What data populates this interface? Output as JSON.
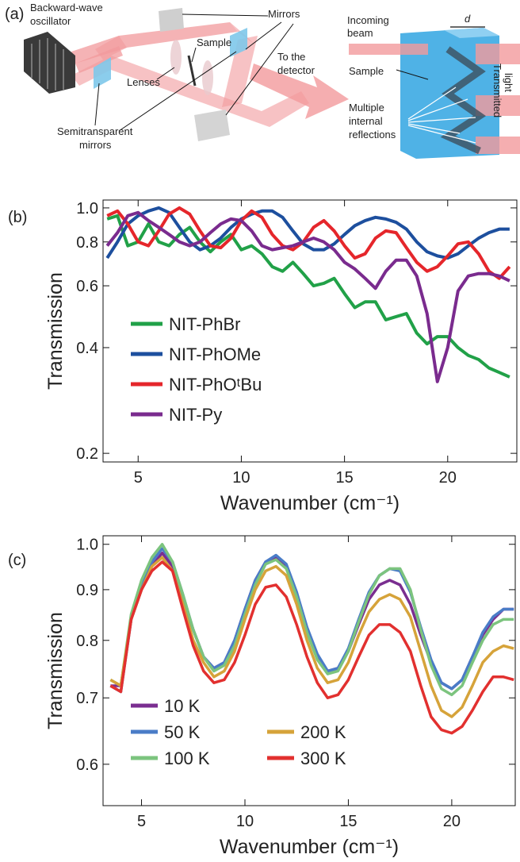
{
  "diagram": {
    "label": "(a)",
    "texts": [
      [
        "Backward-wave",
        "oscillator"
      ],
      [
        "Mirrors"
      ],
      [
        "Sample"
      ],
      [
        "Lenses"
      ],
      [
        "To the",
        "detector"
      ],
      [
        "Semitransparent",
        "mirrors"
      ],
      [
        "Incoming",
        "beam"
      ],
      [
        "d"
      ],
      [
        "Sample"
      ],
      [
        "Multiple",
        "internal",
        "reflections"
      ],
      [
        "Transmitted",
        "light"
      ]
    ]
  },
  "chart_data": [
    {
      "type": "line",
      "panel_label": "(b)",
      "xlabel": "Wavenumber (cm⁻¹)",
      "ylabel": "Transmission",
      "yscale": "log",
      "legend": "lower left",
      "legend_rows": 4,
      "xlim": [
        3.3,
        23.35
      ],
      "ylim": [
        0.189,
        1.053
      ],
      "xticks": [
        5,
        10,
        15,
        20
      ],
      "yticks": [
        0.2,
        0.4,
        0.6,
        0.8,
        {
          "value": 1,
          "label": "1.0"
        }
      ],
      "x": [
        3.5,
        4,
        4.5,
        5,
        5.5,
        6,
        6.5,
        7,
        7.5,
        8,
        8.5,
        9,
        9.5,
        10,
        10.5,
        11,
        11.5,
        12,
        12.5,
        13,
        13.5,
        14,
        14.5,
        15,
        15.5,
        16,
        16.5,
        17,
        17.5,
        18,
        18.5,
        19,
        19.5,
        20,
        20.5,
        21,
        21.5,
        22,
        22.5,
        23
      ],
      "series": [
        {
          "name": "NIT-PhBr",
          "color": "#21a148",
          "values": [
            0.93,
            0.95,
            0.78,
            0.8,
            0.9,
            0.8,
            0.78,
            0.84,
            0.88,
            0.8,
            0.75,
            0.8,
            0.84,
            0.76,
            0.78,
            0.74,
            0.68,
            0.66,
            0.7,
            0.65,
            0.6,
            0.61,
            0.63,
            0.57,
            0.52,
            0.54,
            0.54,
            0.48,
            0.49,
            0.5,
            0.44,
            0.41,
            0.43,
            0.43,
            0.4,
            0.38,
            0.37,
            0.35,
            0.34,
            0.33
          ]
        },
        {
          "name": "NIT-PhOMe",
          "color": "#1d4f9e",
          "values": [
            0.72,
            0.8,
            0.9,
            0.95,
            0.98,
            1.0,
            0.97,
            0.88,
            0.8,
            0.76,
            0.78,
            0.82,
            0.88,
            0.93,
            0.96,
            0.98,
            0.98,
            0.94,
            0.86,
            0.79,
            0.76,
            0.76,
            0.79,
            0.84,
            0.89,
            0.92,
            0.94,
            0.93,
            0.91,
            0.87,
            0.8,
            0.75,
            0.73,
            0.72,
            0.74,
            0.78,
            0.82,
            0.85,
            0.87,
            0.87
          ]
        },
        {
          "name": "NIT-PhOᵗBu",
          "color": "#e5262b",
          "values": [
            0.95,
            0.98,
            0.9,
            0.8,
            0.78,
            0.86,
            0.96,
            1.0,
            0.96,
            0.86,
            0.78,
            0.77,
            0.82,
            0.92,
            0.98,
            0.94,
            0.84,
            0.78,
            0.76,
            0.8,
            0.88,
            0.92,
            0.86,
            0.78,
            0.72,
            0.74,
            0.82,
            0.86,
            0.85,
            0.77,
            0.7,
            0.66,
            0.68,
            0.73,
            0.79,
            0.8,
            0.74,
            0.66,
            0.63,
            0.68
          ]
        },
        {
          "name": "NIT-Py",
          "color": "#7a2b8e",
          "values": [
            0.78,
            0.85,
            0.95,
            0.97,
            0.92,
            0.88,
            0.84,
            0.8,
            0.78,
            0.8,
            0.85,
            0.9,
            0.93,
            0.92,
            0.86,
            0.78,
            0.76,
            0.77,
            0.78,
            0.8,
            0.82,
            0.8,
            0.76,
            0.7,
            0.67,
            0.63,
            0.59,
            0.66,
            0.71,
            0.71,
            0.64,
            0.5,
            0.32,
            0.4,
            0.58,
            0.64,
            0.65,
            0.65,
            0.64,
            0.62
          ]
        }
      ]
    },
    {
      "type": "line",
      "panel_label": "(c)",
      "xlabel": "Wavenumber (cm⁻¹)",
      "ylabel": "Transmission",
      "yscale": "log",
      "legend": "lower left",
      "legend_rows": 3,
      "xlim": [
        3.14,
        23.07
      ],
      "ylim": [
        0.545,
        1.02
      ],
      "xticks": [
        5,
        10,
        15,
        20
      ],
      "yticks": [
        0.6,
        0.7,
        0.8,
        0.9,
        {
          "value": 1,
          "label": "1.0"
        }
      ],
      "x": [
        3.5,
        4,
        4.5,
        5,
        5.5,
        6,
        6.5,
        7,
        7.5,
        8,
        8.5,
        9,
        9.5,
        10,
        10.5,
        11,
        11.5,
        12,
        12.5,
        13,
        13.5,
        14,
        14.5,
        15,
        15.5,
        16,
        16.5,
        17,
        17.5,
        18,
        18.5,
        19,
        19.5,
        20,
        20.5,
        21,
        21.5,
        22,
        22.5,
        23
      ],
      "series": [
        {
          "name": "10 K",
          "color": "#7a2e90",
          "values": [
            0.72,
            0.72,
            0.84,
            0.9,
            0.95,
            0.98,
            0.95,
            0.88,
            0.82,
            0.77,
            0.75,
            0.76,
            0.8,
            0.86,
            0.92,
            0.96,
            0.97,
            0.95,
            0.89,
            0.82,
            0.77,
            0.745,
            0.75,
            0.78,
            0.83,
            0.88,
            0.91,
            0.92,
            0.91,
            0.87,
            0.81,
            0.76,
            0.725,
            0.715,
            0.73,
            0.77,
            0.81,
            0.84,
            0.86,
            0.86
          ]
        },
        {
          "name": "50 K",
          "color": "#4a7cc7",
          "values": [
            0.72,
            0.71,
            0.84,
            0.91,
            0.96,
            0.99,
            0.96,
            0.89,
            0.82,
            0.77,
            0.75,
            0.76,
            0.8,
            0.86,
            0.92,
            0.96,
            0.975,
            0.955,
            0.895,
            0.825,
            0.775,
            0.745,
            0.75,
            0.785,
            0.84,
            0.895,
            0.93,
            0.945,
            0.94,
            0.895,
            0.825,
            0.765,
            0.725,
            0.715,
            0.73,
            0.77,
            0.815,
            0.845,
            0.86,
            0.86
          ]
        },
        {
          "name": "100 K",
          "color": "#7cc47e",
          "values": [
            0.73,
            0.72,
            0.85,
            0.92,
            0.97,
            1.0,
            0.96,
            0.89,
            0.82,
            0.77,
            0.745,
            0.755,
            0.79,
            0.85,
            0.91,
            0.955,
            0.965,
            0.945,
            0.885,
            0.815,
            0.765,
            0.74,
            0.745,
            0.78,
            0.835,
            0.89,
            0.93,
            0.945,
            0.945,
            0.9,
            0.82,
            0.755,
            0.715,
            0.705,
            0.72,
            0.76,
            0.8,
            0.83,
            0.84,
            0.84
          ]
        },
        {
          "name": "200 K",
          "color": "#d6a33a",
          "values": [
            0.73,
            0.72,
            0.84,
            0.9,
            0.95,
            0.97,
            0.94,
            0.87,
            0.8,
            0.76,
            0.735,
            0.745,
            0.78,
            0.84,
            0.9,
            0.94,
            0.95,
            0.93,
            0.87,
            0.8,
            0.75,
            0.725,
            0.73,
            0.76,
            0.81,
            0.855,
            0.88,
            0.89,
            0.88,
            0.845,
            0.78,
            0.72,
            0.68,
            0.67,
            0.685,
            0.72,
            0.76,
            0.78,
            0.79,
            0.785
          ]
        },
        {
          "name": "300 K",
          "color": "#e2302f",
          "values": [
            0.72,
            0.71,
            0.84,
            0.9,
            0.94,
            0.96,
            0.94,
            0.86,
            0.79,
            0.745,
            0.725,
            0.73,
            0.76,
            0.81,
            0.87,
            0.905,
            0.91,
            0.885,
            0.83,
            0.77,
            0.725,
            0.7,
            0.705,
            0.73,
            0.77,
            0.81,
            0.83,
            0.83,
            0.815,
            0.78,
            0.72,
            0.67,
            0.65,
            0.645,
            0.655,
            0.68,
            0.71,
            0.735,
            0.735,
            0.73
          ]
        }
      ]
    }
  ]
}
